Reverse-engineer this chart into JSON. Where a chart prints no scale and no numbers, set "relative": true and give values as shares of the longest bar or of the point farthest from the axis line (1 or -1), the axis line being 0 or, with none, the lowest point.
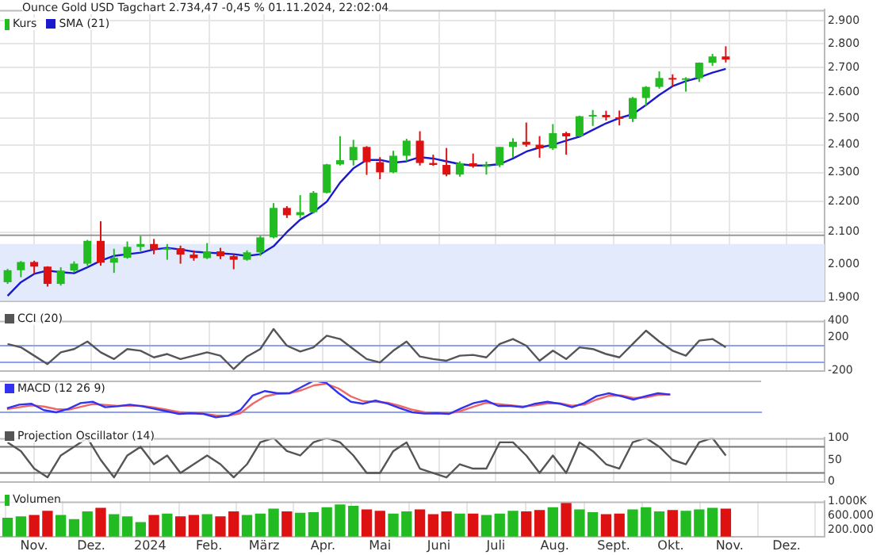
{
  "chart_data": [
    {
      "type": "candlestick",
      "title": "Ounce Gold USD Tagchart 2.734,47 -0,45 % 01.11.2024, 22:02:04",
      "legend": "top left",
      "grid": true,
      "log": "y",
      "tick_labels": "y",
      "x": [
        "2023-10-18",
        "2023-10-25",
        "2023-11-01",
        "2023-11-08",
        "2023-11-15",
        "2023-11-22",
        "2023-11-29",
        "2023-12-06",
        "2023-12-13",
        "2023-12-20",
        "2023-12-27",
        "2024-01-03",
        "2024-01-10",
        "2024-01-17",
        "2024-01-24",
        "2024-01-31",
        "2024-02-07",
        "2024-02-14",
        "2024-02-21",
        "2024-02-28",
        "2024-03-06",
        "2024-03-13",
        "2024-03-20",
        "2024-03-27",
        "2024-04-03",
        "2024-04-10",
        "2024-04-17",
        "2024-04-24",
        "2024-05-01",
        "2024-05-08",
        "2024-05-15",
        "2024-05-22",
        "2024-05-29",
        "2024-06-05",
        "2024-06-12",
        "2024-06-19",
        "2024-06-26",
        "2024-07-03",
        "2024-07-10",
        "2024-07-17",
        "2024-07-24",
        "2024-07-31",
        "2024-08-07",
        "2024-08-14",
        "2024-08-21",
        "2024-08-28",
        "2024-09-04",
        "2024-09-11",
        "2024-09-18",
        "2024-09-25",
        "2024-10-02",
        "2024-10-09",
        "2024-10-16",
        "2024-10-23",
        "2024-10-30"
      ],
      "xlim": [
        "2023-10-14",
        "2024-12-21"
      ],
      "xticks": [
        {
          "value": "2023-11-01",
          "label": null
        },
        {
          "value": "2023-12-01",
          "label": null
        },
        {
          "value": "2024-01-01",
          "label": null
        },
        {
          "value": "2024-02-01",
          "label": null
        },
        {
          "value": "2024-03-01",
          "label": null
        },
        {
          "value": "2024-04-01",
          "label": null
        },
        {
          "value": "2024-05-01",
          "label": null
        },
        {
          "value": "2024-06-01",
          "label": null
        },
        {
          "value": "2024-07-01",
          "label": null
        },
        {
          "value": "2024-08-01",
          "label": null
        },
        {
          "value": "2024-09-01",
          "label": null
        },
        {
          "value": "2024-10-01",
          "label": null
        },
        {
          "value": "2024-11-01",
          "label": null
        },
        {
          "value": "2024-12-01",
          "label": null
        }
      ],
      "ylim": [
        1890,
        2950
      ],
      "yticks": [
        {
          "value": 1900,
          "label": "1.900"
        },
        {
          "value": 2000,
          "label": "2.000"
        },
        {
          "value": 2100,
          "label": "2.100"
        },
        {
          "value": 2200,
          "label": "2.200"
        },
        {
          "value": 2300,
          "label": "2.300"
        },
        {
          "value": 2400,
          "label": "2.400"
        },
        {
          "value": 2500,
          "label": "2.500"
        },
        {
          "value": 2600,
          "label": "2.600"
        },
        {
          "value": 2700,
          "label": "2.700"
        },
        {
          "value": 2800,
          "label": "2.800"
        },
        {
          "value": 2900,
          "label": "2.900"
        }
      ],
      "bands": [
        {
          "axis": "y",
          "from": 1890,
          "to": 2062,
          "color": "#e3eafb"
        }
      ],
      "ref_lines": [
        {
          "axis": "y",
          "value": 2090,
          "color": "#999999"
        }
      ],
      "series": [
        {
          "name": "Kurs",
          "ohlc": [
            [
              1945,
              1985,
              1940,
              1981
            ],
            [
              1981,
              2009,
              1960,
              2006
            ],
            [
              2006,
              2010,
              1970,
              1992
            ],
            [
              1992,
              1993,
              1932,
              1940
            ],
            [
              1940,
              1990,
              1935,
              1980
            ],
            [
              1980,
              2008,
              1975,
              2001
            ],
            [
              2001,
              2075,
              1995,
              2072
            ],
            [
              2072,
              2135,
              1995,
              2004
            ],
            [
              2004,
              2047,
              1973,
              2019
            ],
            [
              2019,
              2070,
              2016,
              2053
            ],
            [
              2053,
              2088,
              2040,
              2062
            ],
            [
              2062,
              2078,
              2030,
              2045
            ],
            [
              2045,
              2062,
              2013,
              2049
            ],
            [
              2049,
              2057,
              2001,
              2029
            ],
            [
              2029,
              2042,
              2010,
              2018
            ],
            [
              2018,
              2065,
              2015,
              2039
            ],
            [
              2039,
              2050,
              2015,
              2024
            ],
            [
              2024,
              2030,
              1984,
              2013
            ],
            [
              2013,
              2042,
              2010,
              2036
            ],
            [
              2036,
              2088,
              2025,
              2083
            ],
            [
              2083,
              2195,
              2080,
              2179
            ],
            [
              2179,
              2185,
              2146,
              2155
            ],
            [
              2155,
              2222,
              2146,
              2165
            ],
            [
              2165,
              2236,
              2160,
              2230
            ],
            [
              2230,
              2331,
              2228,
              2329
            ],
            [
              2329,
              2432,
              2325,
              2344
            ],
            [
              2344,
              2418,
              2325,
              2392
            ],
            [
              2392,
              2395,
              2292,
              2337
            ],
            [
              2337,
              2355,
              2277,
              2301
            ],
            [
              2301,
              2378,
              2298,
              2360
            ],
            [
              2360,
              2422,
              2340,
              2415
            ],
            [
              2415,
              2450,
              2325,
              2334
            ],
            [
              2334,
              2364,
              2324,
              2327
            ],
            [
              2327,
              2388,
              2287,
              2293
            ],
            [
              2293,
              2340,
              2286,
              2333
            ],
            [
              2333,
              2368,
              2317,
              2322
            ],
            [
              2322,
              2339,
              2293,
              2326
            ],
            [
              2326,
              2392,
              2319,
              2392
            ],
            [
              2392,
              2424,
              2353,
              2411
            ],
            [
              2411,
              2483,
              2393,
              2400
            ],
            [
              2400,
              2432,
              2353,
              2387
            ],
            [
              2387,
              2477,
              2381,
              2443
            ],
            [
              2443,
              2448,
              2364,
              2431
            ],
            [
              2431,
              2509,
              2430,
              2507
            ],
            [
              2507,
              2531,
              2470,
              2512
            ],
            [
              2512,
              2528,
              2491,
              2503
            ],
            [
              2503,
              2529,
              2472,
              2497
            ],
            [
              2497,
              2582,
              2485,
              2578
            ],
            [
              2578,
              2625,
              2546,
              2622
            ],
            [
              2622,
              2685,
              2615,
              2658
            ],
            [
              2658,
              2673,
              2624,
              2653
            ],
            [
              2653,
              2661,
              2603,
              2657
            ],
            [
              2657,
              2722,
              2642,
              2721
            ],
            [
              2721,
              2758,
              2708,
              2747
            ],
            [
              2747,
              2790,
              2722,
              2734
            ]
          ],
          "colors": [
            "#22bb22",
            "#22bb22",
            "#dd1111",
            "#dd1111",
            "#22bb22",
            "#22bb22",
            "#22bb22",
            "#dd1111",
            "#22bb22",
            "#22bb22",
            "#22bb22",
            "#dd1111",
            "#22bb22",
            "#dd1111",
            "#dd1111",
            "#22bb22",
            "#dd1111",
            "#dd1111",
            "#22bb22",
            "#22bb22",
            "#22bb22",
            "#dd1111",
            "#22bb22",
            "#22bb22",
            "#22bb22",
            "#22bb22",
            "#22bb22",
            "#dd1111",
            "#dd1111",
            "#22bb22",
            "#22bb22",
            "#dd1111",
            "#dd1111",
            "#dd1111",
            "#22bb22",
            "#dd1111",
            "#22bb22",
            "#22bb22",
            "#22bb22",
            "#dd1111",
            "#dd1111",
            "#22bb22",
            "#dd1111",
            "#22bb22",
            "#22bb22",
            "#dd1111",
            "#dd1111",
            "#22bb22",
            "#22bb22",
            "#22bb22",
            "#dd1111",
            "#22bb22",
            "#22bb22",
            "#22bb22",
            "#dd1111"
          ]
        },
        {
          "name": "SMA (21)",
          "type": "line",
          "color": "#1a1acc",
          "values": [
            1905,
            1945,
            1970,
            1980,
            1975,
            1972,
            1990,
            2010,
            2025,
            2030,
            2035,
            2045,
            2050,
            2045,
            2038,
            2035,
            2033,
            2030,
            2025,
            2030,
            2055,
            2100,
            2140,
            2165,
            2200,
            2265,
            2315,
            2345,
            2345,
            2335,
            2340,
            2355,
            2350,
            2340,
            2330,
            2325,
            2325,
            2330,
            2350,
            2375,
            2390,
            2400,
            2415,
            2430,
            2455,
            2480,
            2500,
            2515,
            2550,
            2590,
            2625,
            2645,
            2660,
            2680,
            2695
          ]
        }
      ]
    },
    {
      "type": "line",
      "legend": "top left",
      "grid": "x",
      "tick_labels": "y",
      "x": [
        "2023-10-18",
        "2023-10-25",
        "2023-11-01",
        "2023-11-08",
        "2023-11-15",
        "2023-11-22",
        "2023-11-29",
        "2023-12-06",
        "2023-12-13",
        "2023-12-20",
        "2023-12-27",
        "2024-01-03",
        "2024-01-10",
        "2024-01-17",
        "2024-01-24",
        "2024-01-31",
        "2024-02-07",
        "2024-02-14",
        "2024-02-21",
        "2024-02-28",
        "2024-03-06",
        "2024-03-13",
        "2024-03-20",
        "2024-03-27",
        "2024-04-03",
        "2024-04-10",
        "2024-04-17",
        "2024-04-24",
        "2024-05-01",
        "2024-05-08",
        "2024-05-15",
        "2024-05-22",
        "2024-05-29",
        "2024-06-05",
        "2024-06-12",
        "2024-06-19",
        "2024-06-26",
        "2024-07-03",
        "2024-07-10",
        "2024-07-17",
        "2024-07-24",
        "2024-07-31",
        "2024-08-07",
        "2024-08-14",
        "2024-08-21",
        "2024-08-28",
        "2024-09-04",
        "2024-09-11",
        "2024-09-18",
        "2024-09-25",
        "2024-10-02",
        "2024-10-09",
        "2024-10-16",
        "2024-10-23",
        "2024-10-30"
      ],
      "xlim": [
        "2023-10-14",
        "2024-12-21"
      ],
      "xticks": [
        {
          "value": "2023-11-01",
          "label": null
        },
        {
          "value": "2023-12-01",
          "label": null
        },
        {
          "value": "2024-01-01",
          "label": null
        },
        {
          "value": "2024-02-01",
          "label": null
        },
        {
          "value": "2024-03-01",
          "label": null
        },
        {
          "value": "2024-04-01",
          "label": null
        },
        {
          "value": "2024-05-01",
          "label": null
        },
        {
          "value": "2024-06-01",
          "label": null
        },
        {
          "value": "2024-07-01",
          "label": null
        },
        {
          "value": "2024-08-01",
          "label": null
        },
        {
          "value": "2024-09-01",
          "label": null
        },
        {
          "value": "2024-10-01",
          "label": null
        },
        {
          "value": "2024-11-01",
          "label": null
        },
        {
          "value": "2024-12-01",
          "label": null
        }
      ],
      "ylim": [
        -200,
        400
      ],
      "yticks": [
        -200,
        200,
        400
      ],
      "ref_lines": [
        {
          "axis": "y",
          "value": 100,
          "color": "#8fa0ee"
        },
        {
          "axis": "y",
          "value": -100,
          "color": "#8fa0ee"
        }
      ],
      "series": [
        {
          "name": "CCI (20)",
          "color": "#555555",
          "values": [
            120,
            80,
            -20,
            -120,
            20,
            60,
            150,
            20,
            -60,
            60,
            40,
            -40,
            0,
            -60,
            -20,
            20,
            -20,
            -180,
            -30,
            60,
            300,
            100,
            30,
            80,
            220,
            180,
            60,
            -60,
            -100,
            40,
            150,
            -30,
            -60,
            -80,
            -20,
            -10,
            -40,
            120,
            180,
            100,
            -80,
            40,
            -60,
            80,
            60,
            0,
            -40,
            120,
            280,
            150,
            40,
            -20,
            160,
            180,
            80
          ]
        }
      ]
    },
    {
      "type": "line",
      "legend": "top left",
      "grid": "x",
      "tick_labels": false,
      "relative": true,
      "categories": [
        null,
        null,
        null,
        null,
        null,
        null,
        null,
        null,
        null,
        null,
        null,
        null,
        null,
        null,
        null,
        null,
        null,
        null,
        null,
        null,
        null,
        null,
        null,
        null,
        null,
        null,
        null,
        null,
        null,
        null,
        null,
        null,
        null,
        null,
        null,
        null,
        null,
        null,
        null,
        null,
        null,
        null,
        null,
        null,
        null,
        null,
        null,
        null,
        null,
        null,
        null,
        null,
        null,
        null,
        null
      ],
      "series": [
        {
          "name": "MACD (12 26 9)",
          "color": "#3333ee",
          "values": [
            0.13,
            0.24,
            0.27,
            0.07,
            0,
            0.11,
            0.29,
            0.33,
            0.16,
            0.19,
            0.24,
            0.19,
            0.11,
            0.03,
            -0.05,
            -0.03,
            -0.05,
            -0.16,
            -0.11,
            0.07,
            0.53,
            0.67,
            0.6,
            0.6,
            0.8,
            1,
            0.93,
            0.6,
            0.33,
            0.27,
            0.37,
            0.27,
            0.13,
            0,
            -0.04,
            -0.03,
            -0.05,
            0.13,
            0.29,
            0.37,
            0.2,
            0.2,
            0.16,
            0.27,
            0.33,
            0.27,
            0.16,
            0.29,
            0.51,
            0.6,
            0.51,
            0.4,
            0.51,
            0.6,
            0.56
          ]
        },
        {
          "color": "#ee6666",
          "values": [
            0.1,
            0.16,
            0.22,
            0.18,
            0.1,
            0.08,
            0.17,
            0.26,
            0.23,
            0.2,
            0.21,
            0.2,
            0.15,
            0.08,
            0.01,
            -0.02,
            -0.04,
            -0.1,
            -0.11,
            -0.03,
            0.27,
            0.5,
            0.58,
            0.6,
            0.7,
            0.85,
            0.9,
            0.75,
            0.5,
            0.35,
            0.33,
            0.3,
            0.2,
            0.08,
            0,
            -0.02,
            -0.04,
            0.05,
            0.18,
            0.3,
            0.26,
            0.22,
            0.18,
            0.22,
            0.28,
            0.28,
            0.21,
            0.24,
            0.4,
            0.52,
            0.53,
            0.45,
            0.47,
            0.55,
            0.56
          ]
        }
      ]
    },
    {
      "type": "line",
      "legend": "top left",
      "grid": "x",
      "tick_labels": "y",
      "x": [
        "2023-10-18",
        "2023-10-25",
        "2023-11-01",
        "2023-11-08",
        "2023-11-15",
        "2023-11-22",
        "2023-11-29",
        "2023-12-06",
        "2023-12-13",
        "2023-12-20",
        "2023-12-27",
        "2024-01-03",
        "2024-01-10",
        "2024-01-17",
        "2024-01-24",
        "2024-01-31",
        "2024-02-07",
        "2024-02-14",
        "2024-02-21",
        "2024-02-28",
        "2024-03-06",
        "2024-03-13",
        "2024-03-20",
        "2024-03-27",
        "2024-04-03",
        "2024-04-10",
        "2024-04-17",
        "2024-04-24",
        "2024-05-01",
        "2024-05-08",
        "2024-05-15",
        "2024-05-22",
        "2024-05-29",
        "2024-06-05",
        "2024-06-12",
        "2024-06-19",
        "2024-06-26",
        "2024-07-03",
        "2024-07-10",
        "2024-07-17",
        "2024-07-24",
        "2024-07-31",
        "2024-08-07",
        "2024-08-14",
        "2024-08-21",
        "2024-08-28",
        "2024-09-04",
        "2024-09-11",
        "2024-09-18",
        "2024-09-25",
        "2024-10-02",
        "2024-10-09",
        "2024-10-16",
        "2024-10-23",
        "2024-10-30"
      ],
      "xlim": [
        "2023-10-14",
        "2024-12-21"
      ],
      "xticks": [
        {
          "value": "2023-11-01",
          "label": null
        },
        {
          "value": "2023-12-01",
          "label": null
        },
        {
          "value": "2024-01-01",
          "label": null
        },
        {
          "value": "2024-02-01",
          "label": null
        },
        {
          "value": "2024-03-01",
          "label": null
        },
        {
          "value": "2024-04-01",
          "label": null
        },
        {
          "value": "2024-05-01",
          "label": null
        },
        {
          "value": "2024-06-01",
          "label": null
        },
        {
          "value": "2024-07-01",
          "label": null
        },
        {
          "value": "2024-08-01",
          "label": null
        },
        {
          "value": "2024-09-01",
          "label": null
        },
        {
          "value": "2024-10-01",
          "label": null
        },
        {
          "value": "2024-11-01",
          "label": null
        },
        {
          "value": "2024-12-01",
          "label": null
        }
      ],
      "ylim": [
        0,
        100
      ],
      "yticks": [
        0,
        50,
        100
      ],
      "ref_lines": [
        {
          "axis": "y",
          "value": 80,
          "color": "#777777"
        },
        {
          "axis": "y",
          "value": 20,
          "color": "#777777"
        }
      ],
      "series": [
        {
          "name": "Projection Oscillator (14)",
          "color": "#555555",
          "values": [
            90,
            70,
            30,
            10,
            60,
            80,
            100,
            50,
            10,
            60,
            80,
            40,
            60,
            20,
            40,
            60,
            40,
            10,
            40,
            90,
            100,
            70,
            60,
            90,
            100,
            90,
            60,
            20,
            20,
            70,
            90,
            30,
            20,
            10,
            40,
            30,
            30,
            90,
            90,
            60,
            20,
            60,
            20,
            90,
            70,
            40,
            30,
            90,
            100,
            80,
            50,
            40,
            90,
            100,
            60
          ]
        }
      ]
    },
    {
      "type": "bar",
      "legend": "top left",
      "grid": "x",
      "x": [
        "2023-10-18",
        "2023-10-25",
        "2023-11-01",
        "2023-11-08",
        "2023-11-15",
        "2023-11-22",
        "2023-11-29",
        "2023-12-06",
        "2023-12-13",
        "2023-12-20",
        "2023-12-27",
        "2024-01-03",
        "2024-01-10",
        "2024-01-17",
        "2024-01-24",
        "2024-01-31",
        "2024-02-07",
        "2024-02-14",
        "2024-02-21",
        "2024-02-28",
        "2024-03-06",
        "2024-03-13",
        "2024-03-20",
        "2024-03-27",
        "2024-04-03",
        "2024-04-10",
        "2024-04-17",
        "2024-04-24",
        "2024-05-01",
        "2024-05-08",
        "2024-05-15",
        "2024-05-22",
        "2024-05-29",
        "2024-06-05",
        "2024-06-12",
        "2024-06-19",
        "2024-06-26",
        "2024-07-03",
        "2024-07-10",
        "2024-07-17",
        "2024-07-24",
        "2024-07-31",
        "2024-08-07",
        "2024-08-14",
        "2024-08-21",
        "2024-08-28",
        "2024-09-04",
        "2024-09-11",
        "2024-09-18",
        "2024-09-25",
        "2024-10-02",
        "2024-10-09",
        "2024-10-16",
        "2024-10-23",
        "2024-10-30"
      ],
      "xlim": [
        "2023-10-14",
        "2024-12-21"
      ],
      "xticks": [
        {
          "value": "2023-11-01",
          "label": "Nov."
        },
        {
          "value": "2023-12-01",
          "label": "Dez."
        },
        {
          "value": "2024-01-01",
          "label": "2024"
        },
        {
          "value": "2024-02-01",
          "label": "Feb."
        },
        {
          "value": "2024-03-01",
          "label": "März"
        },
        {
          "value": "2024-04-01",
          "label": "Apr."
        },
        {
          "value": "2024-05-01",
          "label": "Mai"
        },
        {
          "value": "2024-06-01",
          "label": "Juni"
        },
        {
          "value": "2024-07-01",
          "label": "Juli"
        },
        {
          "value": "2024-08-01",
          "label": "Aug."
        },
        {
          "value": "2024-09-01",
          "label": "Sept."
        },
        {
          "value": "2024-10-01",
          "label": "Okt."
        },
        {
          "value": "2024-11-01",
          "label": "Nov."
        },
        {
          "value": "2024-12-01",
          "label": "Dez."
        }
      ],
      "ylim": [
        0,
        1000000
      ],
      "yticks": [
        {
          "value": 200000,
          "label": "200.000"
        },
        {
          "value": 600000,
          "label": "600.000"
        },
        {
          "value": 1000000,
          "label": "1.000K"
        }
      ],
      "series": [
        {
          "name": "Volumen",
          "values": [
            520000,
            560000,
            600000,
            720000,
            600000,
            480000,
            700000,
            800000,
            620000,
            560000,
            400000,
            600000,
            640000,
            560000,
            600000,
            620000,
            560000,
            700000,
            600000,
            640000,
            780000,
            700000,
            660000,
            680000,
            820000,
            900000,
            860000,
            760000,
            720000,
            640000,
            700000,
            760000,
            620000,
            700000,
            640000,
            640000,
            600000,
            640000,
            720000,
            700000,
            740000,
            820000,
            960000,
            760000,
            680000,
            620000,
            640000,
            760000,
            820000,
            700000,
            740000,
            720000,
            760000,
            800000,
            780000
          ],
          "colors": [
            "#22bb22",
            "#22bb22",
            "#dd1111",
            "#dd1111",
            "#22bb22",
            "#22bb22",
            "#22bb22",
            "#dd1111",
            "#22bb22",
            "#22bb22",
            "#22bb22",
            "#dd1111",
            "#22bb22",
            "#dd1111",
            "#dd1111",
            "#22bb22",
            "#dd1111",
            "#dd1111",
            "#22bb22",
            "#22bb22",
            "#22bb22",
            "#dd1111",
            "#22bb22",
            "#22bb22",
            "#22bb22",
            "#22bb22",
            "#22bb22",
            "#dd1111",
            "#dd1111",
            "#22bb22",
            "#22bb22",
            "#dd1111",
            "#dd1111",
            "#dd1111",
            "#22bb22",
            "#dd1111",
            "#22bb22",
            "#22bb22",
            "#22bb22",
            "#dd1111",
            "#dd1111",
            "#22bb22",
            "#dd1111",
            "#22bb22",
            "#22bb22",
            "#dd1111",
            "#dd1111",
            "#22bb22",
            "#22bb22",
            "#22bb22",
            "#dd1111",
            "#22bb22",
            "#22bb22",
            "#22bb22",
            "#dd1111"
          ]
        }
      ]
    }
  ]
}
